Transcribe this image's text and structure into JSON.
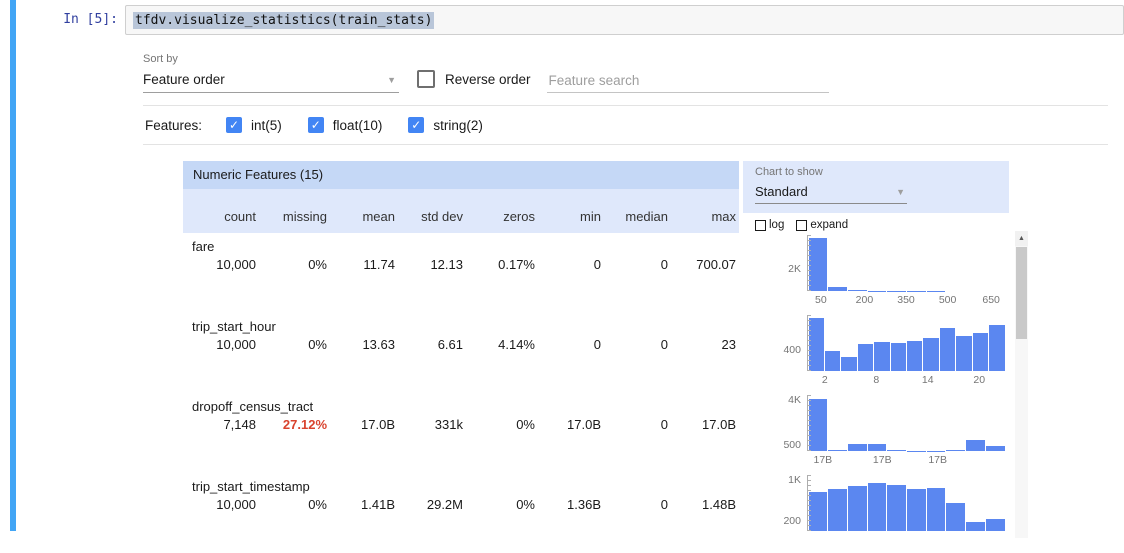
{
  "colors": {
    "accent_blue": "#4285f4",
    "histogram_bar": "#5b87f0",
    "missing_alert": "#d9432e",
    "selection_highlight": "#b9c6d9",
    "header_band": "#c5d8f6",
    "subheader_band": "#dfe8fb",
    "selected_cell_bar": "#42a5f5"
  },
  "icons": {
    "check": "✓",
    "dropdown_caret": "▼",
    "scroll_up_arrow": "▲"
  },
  "notebook": {
    "prompt": "In [5]:",
    "code": "tfdv.visualize_statistics(train_stats)"
  },
  "controls": {
    "sort_by_label": "Sort by",
    "sort_by_value": "Feature order",
    "reverse_order_label": "Reverse order",
    "search_placeholder": "Feature search",
    "features_label": "Features:",
    "feature_filters": [
      {
        "label": "int(5)",
        "checked": true
      },
      {
        "label": "float(10)",
        "checked": true
      },
      {
        "label": "string(2)",
        "checked": true
      }
    ]
  },
  "chart_panel": {
    "label": "Chart to show",
    "value": "Standard",
    "options": [
      {
        "label": "log",
        "checked": false
      },
      {
        "label": "expand",
        "checked": false
      }
    ]
  },
  "table": {
    "title": "Numeric Features (15)",
    "columns": [
      "count",
      "missing",
      "mean",
      "std dev",
      "zeros",
      "min",
      "median",
      "max"
    ],
    "rows": [
      {
        "name": "fare",
        "values": [
          "10,000",
          "0%",
          "11.74",
          "12.13",
          "0.17%",
          "0",
          "0",
          "700.07"
        ],
        "alert_col": -1,
        "histogram": {
          "type": "bar",
          "ymax": 5000,
          "values": [
            4700,
            380,
            90,
            45,
            25,
            14,
            9,
            6,
            4,
            2
          ],
          "yticks": [
            {
              "label": "2K",
              "value": 2000
            }
          ],
          "xticks": [
            {
              "label": "50",
              "x": 7
            },
            {
              "label": "200",
              "x": 29
            },
            {
              "label": "350",
              "x": 50
            },
            {
              "label": "500",
              "x": 71
            },
            {
              "label": "650",
              "x": 93
            }
          ]
        }
      },
      {
        "name": "trip_start_hour",
        "values": [
          "10,000",
          "0%",
          "13.63",
          "6.61",
          "4.14%",
          "0",
          "0",
          "23"
        ],
        "alert_col": -1,
        "histogram": {
          "type": "bar",
          "ymax": 1050,
          "values": [
            1000,
            380,
            260,
            500,
            540,
            520,
            560,
            610,
            800,
            650,
            720,
            860
          ],
          "yticks": [
            {
              "label": "400",
              "value": 400
            }
          ],
          "xticks": [
            {
              "label": "2",
              "x": 9
            },
            {
              "label": "8",
              "x": 35
            },
            {
              "label": "14",
              "x": 61
            },
            {
              "label": "20",
              "x": 87
            }
          ]
        }
      },
      {
        "name": "dropoff_census_tract",
        "values": [
          "7,148",
          "27.12%",
          "17.0B",
          "331k",
          "0%",
          "17.0B",
          "0",
          "17.0B"
        ],
        "alert_col": 1,
        "histogram": {
          "type": "bar",
          "ymax": 4400,
          "values": [
            4100,
            60,
            520,
            560,
            70,
            40,
            30,
            50,
            900,
            380
          ],
          "yticks": [
            {
              "label": "4K",
              "value": 4000
            },
            {
              "label": "500",
              "value": 500
            }
          ],
          "xticks": [
            {
              "label": "17B",
              "x": 8
            },
            {
              "label": "17B",
              "x": 38
            },
            {
              "label": "17B",
              "x": 66
            }
          ]
        }
      },
      {
        "name": "trip_start_timestamp",
        "values": [
          "10,000",
          "0%",
          "1.41B",
          "29.2M",
          "0%",
          "1.36B",
          "0",
          "1.48B"
        ],
        "alert_col": -1,
        "histogram": {
          "type": "bar",
          "ymax": 1100,
          "values": [
            760,
            820,
            880,
            950,
            900,
            830,
            850,
            560,
            170,
            240
          ],
          "yticks": [
            {
              "label": "1K",
              "value": 1000
            },
            {
              "label": "200",
              "value": 200
            }
          ],
          "xticks": []
        }
      }
    ]
  }
}
